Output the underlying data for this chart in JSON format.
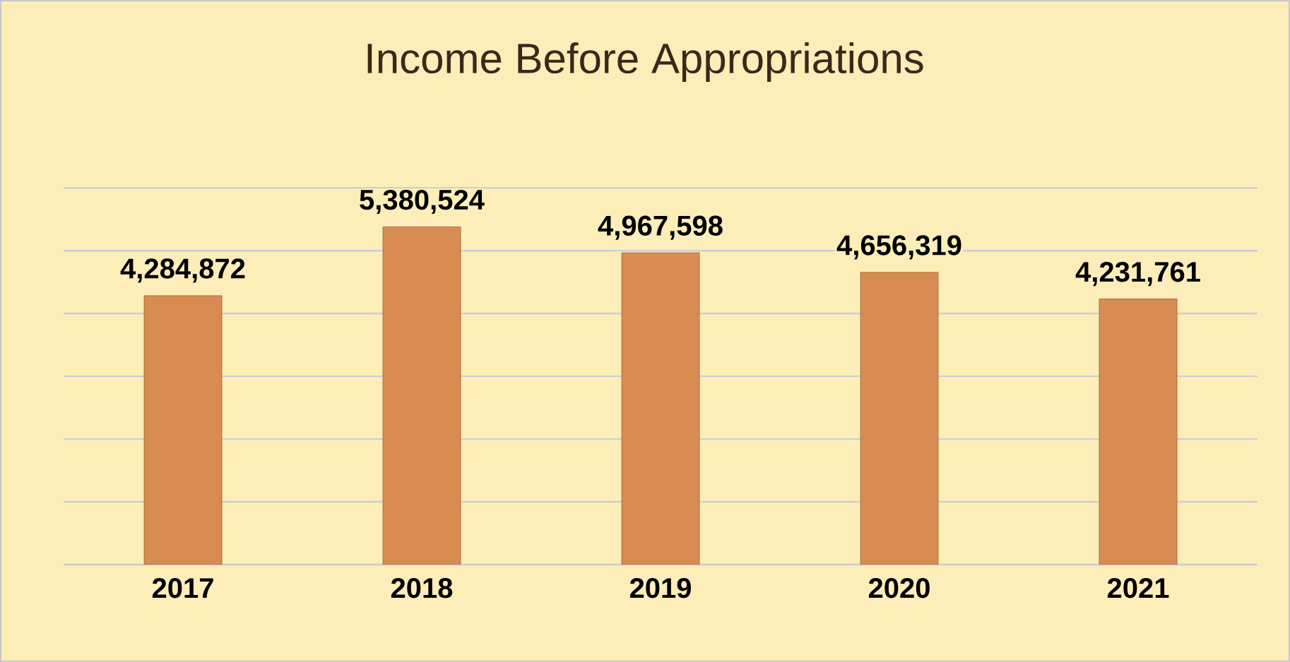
{
  "chart_data": {
    "type": "bar",
    "title": "Income Before Appropriations",
    "categories": [
      "2017",
      "2018",
      "2019",
      "2020",
      "2021"
    ],
    "values": [
      4284872,
      5380524,
      4967598,
      4656319,
      4231761
    ],
    "value_labels": [
      "4,284,872",
      "5,380,524",
      "4,967,598",
      "4,656,319",
      "4,231,761"
    ],
    "color": "#d98c52",
    "grid": "y"
  }
}
